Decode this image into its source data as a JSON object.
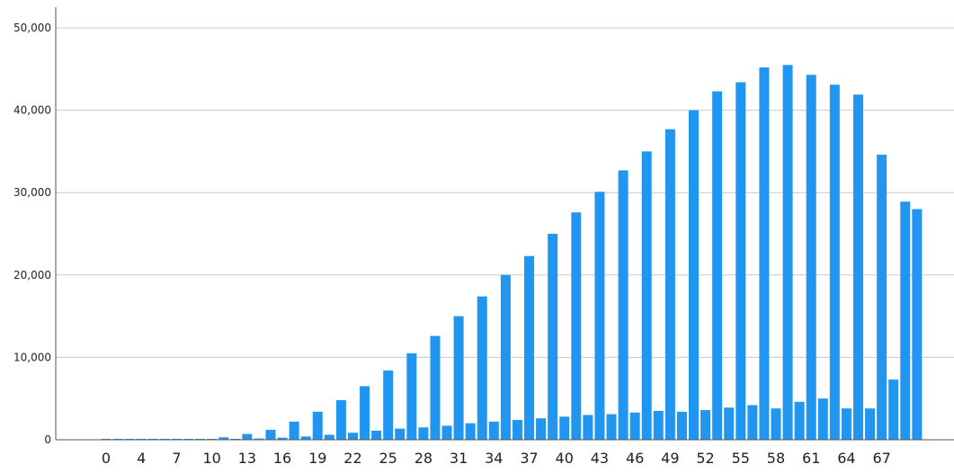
{
  "chart_data": {
    "type": "bar",
    "title": "",
    "xlabel": "",
    "ylabel": "",
    "grid": true,
    "color": "#2196f0",
    "ylim": [
      0,
      50000
    ],
    "yticks": [
      "0",
      "10,000",
      "20,000",
      "30,000",
      "40,000",
      "50,000"
    ],
    "ytick_values": [
      0,
      10000,
      20000,
      30000,
      40000,
      50000
    ],
    "x": [
      0,
      1,
      2,
      3,
      4,
      5,
      6,
      7,
      8,
      9,
      10,
      11,
      12,
      13,
      14,
      15,
      16,
      17,
      18,
      19,
      20,
      21,
      22,
      23,
      24,
      25,
      26,
      27,
      28,
      29,
      30,
      31,
      32,
      33,
      34,
      35,
      36,
      37,
      38,
      39,
      40,
      41,
      42,
      43,
      44,
      45,
      46,
      47,
      48,
      49,
      50,
      51,
      52,
      53,
      54,
      55,
      56,
      57,
      58,
      59,
      60,
      61,
      62,
      63,
      64,
      65,
      66,
      67,
      68,
      69
    ],
    "xtick_labels": [
      {
        "value": 0,
        "label": "0"
      },
      {
        "value": 3,
        "label": "4"
      },
      {
        "value": 6,
        "label": "7"
      },
      {
        "value": 9,
        "label": "10"
      },
      {
        "value": 12,
        "label": "13"
      },
      {
        "value": 15,
        "label": "16"
      },
      {
        "value": 18,
        "label": "19"
      },
      {
        "value": 21,
        "label": "22"
      },
      {
        "value": 24,
        "label": "25"
      },
      {
        "value": 27,
        "label": "28"
      },
      {
        "value": 30,
        "label": "31"
      },
      {
        "value": 33,
        "label": "34"
      },
      {
        "value": 36,
        "label": "37"
      },
      {
        "value": 39,
        "label": "40"
      },
      {
        "value": 42,
        "label": "43"
      },
      {
        "value": 45,
        "label": "46"
      },
      {
        "value": 48,
        "label": "49"
      },
      {
        "value": 51,
        "label": "52"
      },
      {
        "value": 54,
        "label": "55"
      },
      {
        "value": 57,
        "label": "58"
      },
      {
        "value": 60,
        "label": "61"
      },
      {
        "value": 63,
        "label": "64"
      },
      {
        "value": 66,
        "label": "67"
      }
    ],
    "values": [
      0,
      0,
      0,
      0,
      0,
      0,
      0,
      0,
      0,
      0,
      300,
      100,
      700,
      150,
      1200,
      250,
      2200,
      400,
      3400,
      600,
      4800,
      850,
      6500,
      1100,
      8400,
      1350,
      10500,
      1500,
      12600,
      1700,
      15000,
      2000,
      17400,
      2200,
      20000,
      2400,
      22300,
      2600,
      25000,
      2800,
      27600,
      3000,
      30100,
      3100,
      32700,
      3300,
      35000,
      3500,
      37700,
      3400,
      40000,
      3600,
      42300,
      3900,
      43400,
      4200,
      45200,
      3800,
      45500,
      4600,
      44300,
      5000,
      43100,
      3800,
      41900,
      3800,
      34600,
      7300,
      28900,
      28000
    ]
  }
}
